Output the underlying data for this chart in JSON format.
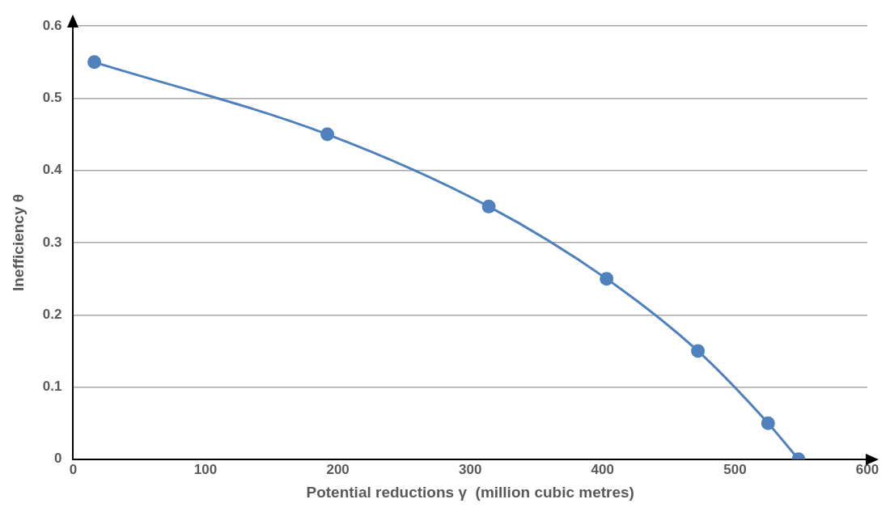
{
  "chart_data": {
    "type": "line",
    "xlabel": "Potential reductions γ  (million cubic metres)",
    "ylabel": "Inefficiency θ",
    "x": [
      16,
      192,
      314,
      403,
      472,
      525,
      548
    ],
    "series": [
      {
        "color": "#4f81bd",
        "values": [
          0.55,
          0.45,
          0.35,
          0.25,
          0.15,
          0.05,
          0
        ]
      }
    ],
    "xlim": [
      0,
      600
    ],
    "xticks": [
      0,
      100,
      200,
      300,
      400,
      500,
      600
    ],
    "ylim": [
      0,
      0.6
    ],
    "yticks": [
      0,
      0.1,
      0.2,
      0.3,
      0.4,
      0.5,
      0.6
    ],
    "grid": "y",
    "legend": false,
    "marker": "circle",
    "line_style": "solid"
  }
}
